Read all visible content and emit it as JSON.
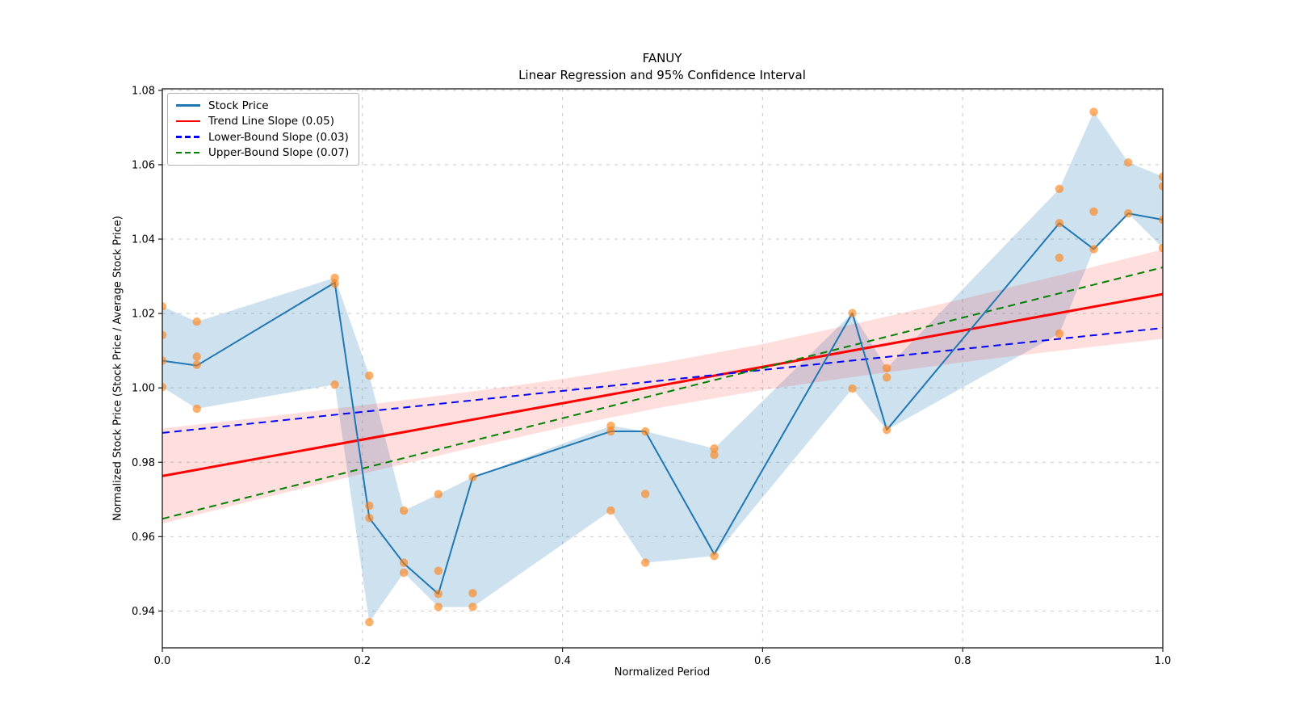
{
  "window": {
    "kind": "matplotlib-style figure",
    "background": "#ffffff"
  },
  "chart_data": {
    "type": "line",
    "ticker": "FANUY",
    "title": "FANUY",
    "subtitle": "Linear Regression and 95% Confidence Interval",
    "xlabel": "Normalized Period",
    "ylabel": "Normalized Stock Price (Stock Price / Average Stock Price)",
    "xlim": [
      0.0,
      1.0
    ],
    "ylim": [
      0.9301,
      1.0804
    ],
    "grid": "dashed, both axes",
    "legend_position": "upper left",
    "xticks": {
      "values": [
        0.0,
        0.2,
        0.4,
        0.6,
        0.8,
        1.0
      ],
      "labels": [
        "0.0",
        "0.2",
        "0.4",
        "0.6",
        "0.8",
        "1.0"
      ]
    },
    "yticks": {
      "values": [
        0.94,
        0.96,
        0.98,
        1.0,
        1.02,
        1.04,
        1.06,
        1.08
      ],
      "labels": [
        "0.94",
        "0.96",
        "0.98",
        "1.00",
        "1.02",
        "1.04",
        "1.06",
        "1.08"
      ]
    },
    "legend": [
      {
        "label": "Stock Price",
        "color": "#1f77b4",
        "style": "solid"
      },
      {
        "label": "Trend Line Slope (0.05)",
        "color": "#ff0000",
        "style": "solid"
      },
      {
        "label": "Lower-Bound Slope (0.03)",
        "color": "#0000ff",
        "style": "dashed"
      },
      {
        "label": "Upper-Bound Slope (0.07)",
        "color": "#008000",
        "style": "dashed"
      }
    ],
    "clusters": [
      {
        "x": 0.0,
        "points": [
          1.0219,
          1.0142,
          1.0073,
          1.0002
        ],
        "line": 1.0073
      },
      {
        "x": 0.0345,
        "points": [
          1.0178,
          1.0084,
          1.0062,
          0.9944
        ],
        "line": 1.006
      },
      {
        "x": 0.1724,
        "points": [
          1.0296,
          1.028,
          1.0009
        ],
        "line": 1.0283
      },
      {
        "x": 0.2069,
        "points": [
          1.0033,
          0.9683,
          0.965,
          0.937
        ],
        "line": 0.965
      },
      {
        "x": 0.2414,
        "points": [
          0.967,
          0.953,
          0.9503
        ],
        "line": 0.9528
      },
      {
        "x": 0.2759,
        "points": [
          0.9714,
          0.9508,
          0.9446,
          0.9411
        ],
        "line": 0.9446
      },
      {
        "x": 0.3103,
        "points": [
          0.976,
          0.9448,
          0.9411
        ],
        "line": 0.976
      },
      {
        "x": 0.4483,
        "points": [
          0.9898,
          0.9883,
          0.967
        ],
        "line": 0.9883
      },
      {
        "x": 0.4828,
        "points": [
          0.9883,
          0.9715,
          0.953
        ],
        "line": 0.9883
      },
      {
        "x": 0.5517,
        "points": [
          0.9837,
          0.982,
          0.9548
        ],
        "line": 0.9553
      },
      {
        "x": 0.6897,
        "points": [
          1.0201,
          0.9998
        ],
        "line": 1.0201
      },
      {
        "x": 0.7241,
        "points": [
          1.0053,
          1.0028,
          0.9887
        ],
        "line": 0.9887
      },
      {
        "x": 0.8966,
        "points": [
          1.0535,
          1.0443,
          1.035,
          1.0146
        ],
        "line": 1.0443
      },
      {
        "x": 0.931,
        "points": [
          1.0742,
          1.0474,
          1.0373
        ],
        "line": 1.0373
      },
      {
        "x": 0.9655,
        "points": [
          1.0606,
          1.0469
        ],
        "line": 1.0469
      },
      {
        "x": 1.0,
        "points": [
          1.0568,
          1.0542,
          1.0452,
          1.0376
        ],
        "line": 1.0452
      }
    ],
    "trend_lines": [
      {
        "name": "trend",
        "label": "Trend Line Slope (0.05)",
        "slope": 0.05,
        "y_start": 0.9763,
        "y_end": 1.0252,
        "color": "#ff0000",
        "style": "solid",
        "width": 3
      },
      {
        "name": "lower-bound",
        "label": "Lower-Bound Slope (0.03)",
        "slope": 0.03,
        "y_start": 0.9879,
        "y_end": 1.0161,
        "color": "#0000ff",
        "style": "dashed",
        "width": 2
      },
      {
        "name": "upper-bound",
        "label": "Upper-Bound Slope (0.07)",
        "slope": 0.07,
        "y_start": 0.9648,
        "y_end": 1.0324,
        "color": "#008000",
        "style": "dashed",
        "width": 2
      }
    ],
    "ci_band": {
      "x": [
        0.0,
        0.1,
        0.2,
        0.3,
        0.4,
        0.5,
        0.6,
        0.7,
        0.8,
        0.9,
        1.0
      ],
      "top": [
        0.9891,
        0.9921,
        0.9953,
        0.9987,
        1.0024,
        1.0068,
        1.0118,
        1.0177,
        1.0239,
        1.0305,
        1.0372
      ],
      "bottom": [
        0.9635,
        0.9703,
        0.9769,
        0.9833,
        0.9894,
        0.9948,
        0.9994,
        1.0033,
        1.0069,
        1.0101,
        1.0132
      ]
    },
    "colors": {
      "stock_line": "#1f77b4",
      "scatter": "#ff7f0e",
      "scatter_opacity": 0.62,
      "minmax_band_fill": "rgba(31,119,180,0.22)",
      "ci_band_fill": "rgba(255,0,0,0.13)",
      "grid": "#c9c9c9",
      "spine": "#1a1a1a",
      "tick_text": "#000000"
    }
  }
}
